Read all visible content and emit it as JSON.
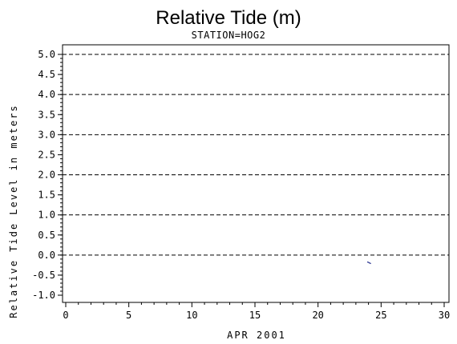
{
  "chart_data": {
    "type": "line",
    "title": "Relative Tide (m)",
    "subtitle": "STATION=HOG2",
    "xlabel": "APR 2001",
    "ylabel": "Relative Tide Level in meters",
    "xlim": [
      0,
      30
    ],
    "ylim": [
      -1.0,
      5.0
    ],
    "x_ticks": [
      "0",
      "5",
      "10",
      "15",
      "20",
      "25",
      "30"
    ],
    "y_ticks": [
      "-1.0",
      "-0.5",
      "0.0",
      "0.5",
      "1.0",
      "1.5",
      "2.0",
      "2.5",
      "3.0",
      "3.5",
      "4.0",
      "4.5",
      "5.0"
    ],
    "reference_lines": [
      0.0,
      1.0,
      2.0,
      3.0,
      4.0,
      5.0
    ],
    "grid": false,
    "series": [
      {
        "x": [
          23.9,
          24.0,
          24.1,
          24.2
        ],
        "y": [
          -0.17,
          -0.18,
          -0.2,
          -0.21
        ]
      }
    ],
    "colors": {
      "line": "#1f2a8a",
      "axis": "#000000",
      "reference": "#000000"
    }
  }
}
